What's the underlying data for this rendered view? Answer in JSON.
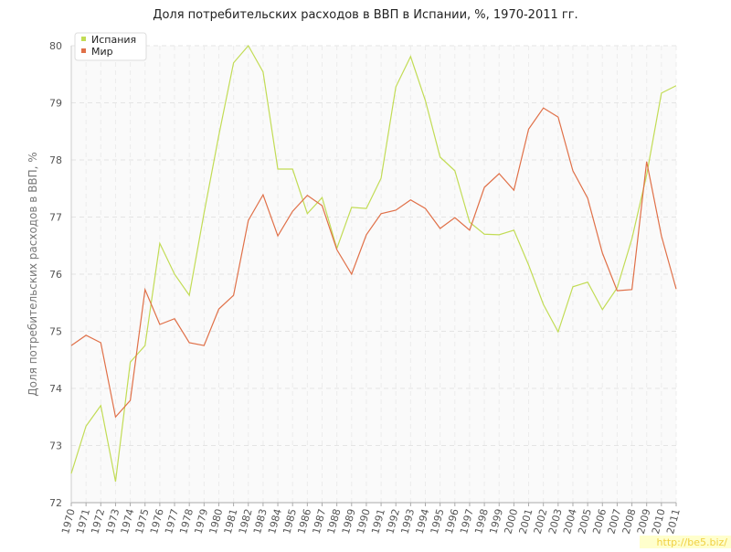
{
  "chart_data": {
    "type": "line",
    "title": "Доля потребительских расходов в ВВП в Испании, %, 1970-2011 гг.",
    "y_label": "Доля потребительских расходов в ВВП, %",
    "watermark": "http://be5.biz/",
    "x": [
      1970,
      1971,
      1972,
      1973,
      1974,
      1975,
      1976,
      1977,
      1978,
      1979,
      1980,
      1981,
      1982,
      1983,
      1984,
      1985,
      1986,
      1987,
      1988,
      1989,
      1990,
      1991,
      1992,
      1993,
      1994,
      1995,
      1996,
      1997,
      1998,
      1999,
      2000,
      2001,
      2002,
      2003,
      2004,
      2005,
      2006,
      2007,
      2008,
      2009,
      2010,
      2011
    ],
    "xlim": [
      1970,
      2011
    ],
    "xticks": [
      1970,
      1971,
      1972,
      1973,
      1974,
      1975,
      1976,
      1977,
      1978,
      1979,
      1980,
      1981,
      1982,
      1983,
      1984,
      1985,
      1986,
      1987,
      1988,
      1989,
      1990,
      1991,
      1992,
      1993,
      1994,
      1995,
      1996,
      1997,
      1998,
      1999,
      2000,
      2001,
      2002,
      2003,
      2004,
      2005,
      2006,
      2007,
      2008,
      2009,
      2010,
      2011
    ],
    "ylim": [
      72,
      80
    ],
    "yticks": [
      72,
      73,
      74,
      75,
      76,
      77,
      78,
      79,
      80
    ],
    "grid": true,
    "legend": "top-left",
    "series": [
      {
        "name": "Испания",
        "color": "#c2dc55",
        "values": [
          72.51,
          73.34,
          73.7,
          72.37,
          74.46,
          74.75,
          76.54,
          76.0,
          75.63,
          77.07,
          78.43,
          79.7,
          80.0,
          79.54,
          77.84,
          77.84,
          77.06,
          77.34,
          76.45,
          77.17,
          77.15,
          77.68,
          79.28,
          79.81,
          79.04,
          78.05,
          77.81,
          76.91,
          76.7,
          76.69,
          76.77,
          76.16,
          75.47,
          74.99,
          75.78,
          75.86,
          75.38,
          75.76,
          76.62,
          77.74,
          79.17,
          79.3
        ]
      },
      {
        "name": "Мир",
        "color": "#e07048",
        "values": [
          74.75,
          74.93,
          74.8,
          73.5,
          73.79,
          75.73,
          75.12,
          75.22,
          74.8,
          74.75,
          75.39,
          75.63,
          76.94,
          77.39,
          76.67,
          77.1,
          77.38,
          77.2,
          76.43,
          76.0,
          76.69,
          77.06,
          77.12,
          77.3,
          77.15,
          76.8,
          76.99,
          76.77,
          77.52,
          77.76,
          77.47,
          78.54,
          78.91,
          78.75,
          77.81,
          77.33,
          76.37,
          75.71,
          75.73,
          77.97,
          76.67,
          75.74
        ]
      }
    ]
  }
}
